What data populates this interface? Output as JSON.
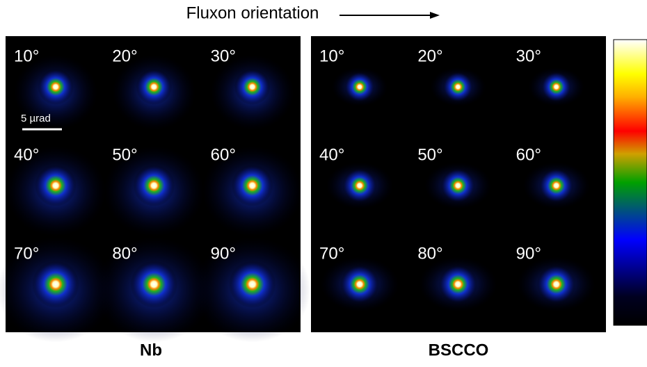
{
  "header": {
    "title": "Fluxon orientation"
  },
  "panels": [
    {
      "label": "Nb",
      "cells": [
        "10°",
        "20°",
        "30°",
        "40°",
        "50°",
        "60°",
        "70°",
        "80°",
        "90°"
      ],
      "scale_bar": "5 µrad"
    },
    {
      "label": "BSCCO",
      "cells": [
        "10°",
        "20°",
        "30°",
        "40°",
        "50°",
        "60°",
        "70°",
        "80°",
        "90°"
      ]
    }
  ]
}
